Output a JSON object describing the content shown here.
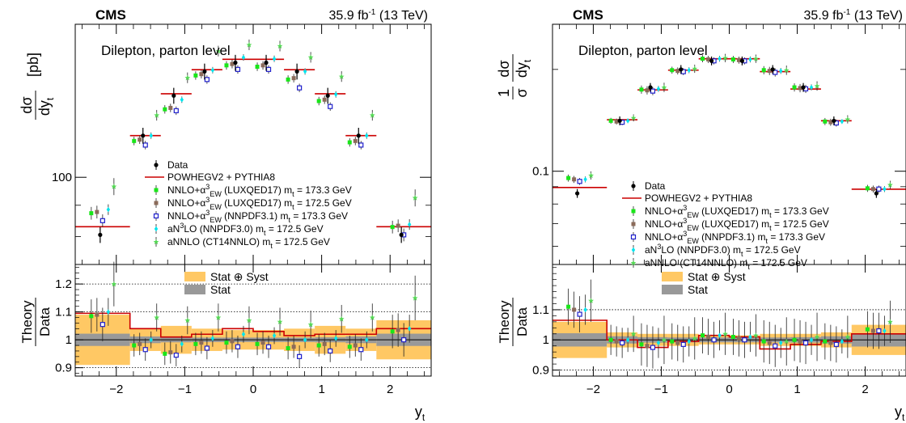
{
  "colors": {
    "data": "#000000",
    "powheg": "#cc0000",
    "luxqed_1733": "#19e619",
    "luxqed_1725": "#8b6b5a",
    "nnpdf31": "#1f1fcc",
    "an3lo": "#00e5ee",
    "annlo": "#55d855",
    "band_total": "#ffc864",
    "band_stat": "#999999"
  },
  "chart_data": [
    {
      "type": "scatter",
      "experiment": "CMS",
      "lumi": "35.9 fb",
      "lumi_sup": "-1",
      "lumi_suffix": " (13 TeV)",
      "region": "Dilepton, parton level",
      "ylabel_top_num": "dσ",
      "ylabel_top_den": "dy",
      "ylabel_top_sub": "t",
      "ylabel_top_unit": "[pb]",
      "ylabel_ratio_num": "Theory",
      "ylabel_ratio_den": "Data",
      "xlabel": "y",
      "xlabel_sub": "t",
      "y_scale": "log",
      "ylim": [
        72,
        178
      ],
      "ylim_ratio": [
        0.87,
        1.27
      ],
      "xlim": [
        -2.6,
        2.6
      ],
      "x_ticks": [
        -2,
        -1,
        0,
        1,
        2
      ],
      "y_ticks": [
        100
      ],
      "y_ticks_ratio": [
        0.9,
        1,
        1.1,
        1.2
      ],
      "bin_edges": [
        -2.6,
        -1.8,
        -1.35,
        -0.9,
        -0.45,
        0,
        0.45,
        0.9,
        1.35,
        1.8,
        2.6
      ],
      "data": [
        80.5,
        117,
        136,
        149,
        154,
        154,
        149,
        136,
        117,
        80.5
      ],
      "powheg": [
        83,
        117,
        137,
        150,
        156,
        156,
        150,
        137,
        117,
        83
      ],
      "ratio_powheg": [
        1.095,
        1.04,
        1.01,
        1.02,
        1.04,
        1.03,
        1.015,
        1.02,
        1.02,
        1.04
      ],
      "ratio_band_total": [
        0.09,
        0.04,
        0.05,
        0.04,
        0.035,
        0.035,
        0.04,
        0.05,
        0.04,
        0.07
      ],
      "ratio_band_stat": [
        0.022,
        0.012,
        0.009,
        0.008,
        0.008,
        0.008,
        0.008,
        0.009,
        0.012,
        0.022
      ],
      "ratio_grid": [
        0.9,
        1.1,
        1.2
      ],
      "series": [
        {
          "legend": "NNLO+α",
          "legend_sup": "3",
          "legend_sub": "EW",
          "legend_rest": " (LUXQED17) m",
          "legend_mass_sub": "t",
          "legend_mass": " = 173.3 GeV",
          "key": "luxqed_1733",
          "marker": "square-filled",
          "ratio": [
            1.085,
            0.98,
            0.95,
            0.985,
            0.99,
            0.985,
            0.97,
            0.98,
            0.975,
            1.03
          ],
          "ratio_err": [
            0.06,
            0.04,
            0.04,
            0.04,
            0.04,
            0.04,
            0.04,
            0.04,
            0.04,
            0.06
          ]
        },
        {
          "legend": "NNLO+α",
          "legend_sup": "3",
          "legend_sub": "EW",
          "legend_rest": " (LUXQED17) m",
          "legend_mass_sub": "t",
          "legend_mass": " = 172.5 GeV",
          "key": "luxqed_1725",
          "marker": "square-filled",
          "ratio": [
            1.09,
            0.985,
            0.955,
            0.99,
            0.995,
            0.99,
            0.975,
            0.985,
            0.98,
            1.035
          ],
          "ratio_err": [
            0.06,
            0.04,
            0.04,
            0.04,
            0.04,
            0.04,
            0.04,
            0.04,
            0.04,
            0.06
          ]
        },
        {
          "legend": "NNLO+α",
          "legend_sup": "3",
          "legend_sub": "EW",
          "legend_rest": " (NNPDF3.1) m",
          "legend_mass_sub": "t",
          "legend_mass": " = 173.3 GeV",
          "key": "nnpdf31",
          "marker": "square-open",
          "ratio": [
            1.055,
            0.965,
            0.945,
            0.97,
            0.975,
            0.975,
            0.94,
            0.96,
            0.965,
            1.0
          ],
          "ratio_err": [
            0.06,
            0.04,
            0.04,
            0.04,
            0.04,
            0.04,
            0.04,
            0.04,
            0.04,
            0.06
          ]
        },
        {
          "legend": "aN",
          "legend_sup": "3",
          "legend_sub": "",
          "legend_rest": "LO (NNPDF3.0) m",
          "legend_mass_sub": "t",
          "legend_mass": " = 172.5 GeV",
          "key": "an3lo",
          "marker": "diamond",
          "ratio": [
            1.1,
            1.0,
            0.985,
            1.005,
            1.02,
            1.015,
            1.0,
            1.005,
            1.0,
            1.04
          ],
          "ratio_err": [
            0.05,
            0.03,
            0.03,
            0.03,
            0.03,
            0.03,
            0.03,
            0.03,
            0.03,
            0.05
          ]
        },
        {
          "legend": "aNNLO (CT14NNLO) m",
          "legend_sup": "",
          "legend_sub": "",
          "legend_rest": "",
          "legend_mass_sub": "t",
          "legend_mass": " = 172.5 GeV",
          "key": "annlo",
          "marker": "star",
          "ratio": [
            1.2,
            1.08,
            1.07,
            1.08,
            1.07,
            1.065,
            1.055,
            1.075,
            1.08,
            1.15
          ],
          "ratio_err": [
            0.08,
            0.05,
            0.05,
            0.05,
            0.05,
            0.05,
            0.05,
            0.05,
            0.05,
            0.08
          ]
        }
      ],
      "legend_data": "Data",
      "legend_powheg": "POWHEGV2 + PYTHIA8",
      "legend_band_total": "Stat ⊕ Syst",
      "legend_band_stat": "Stat"
    },
    {
      "type": "scatter",
      "experiment": "CMS",
      "lumi": "35.9 fb",
      "lumi_sup": "-1",
      "lumi_suffix": " (13 TeV)",
      "region": "Dilepton, parton level",
      "ylabel_top_pre": "1",
      "ylabel_top_pre_den": "σ",
      "ylabel_top_num": "dσ",
      "ylabel_top_den": "dy",
      "ylabel_top_sub": "t",
      "ylabel_ratio_num": "Theory",
      "ylabel_ratio_den": "Data",
      "xlabel": "y",
      "xlabel_sub": "t",
      "y_scale": "log",
      "ylim": [
        0.053,
        0.272
      ],
      "ylim_ratio": [
        0.88,
        1.25
      ],
      "xlim": [
        -2.6,
        2.6
      ],
      "x_ticks": [
        -2,
        -1,
        0,
        1,
        2
      ],
      "y_ticks": [
        0.1
      ],
      "y_ticks_ratio": [
        0.9,
        1,
        1.1
      ],
      "bin_edges": [
        -2.6,
        -1.8,
        -1.35,
        -0.9,
        -0.45,
        0,
        0.45,
        0.9,
        1.35,
        1.8,
        2.6
      ],
      "data": [
        0.086,
        0.141,
        0.177,
        0.2,
        0.212,
        0.212,
        0.2,
        0.177,
        0.141,
        0.086
      ],
      "powheg": [
        0.0895,
        0.142,
        0.174,
        0.199,
        0.215,
        0.215,
        0.197,
        0.175,
        0.141,
        0.0885
      ],
      "ratio_powheg": [
        1.065,
        1.0,
        0.975,
        0.995,
        1.015,
        1.01,
        0.97,
        0.985,
        0.995,
        1.02
      ],
      "ratio_band_total": [
        0.06,
        0.025,
        0.02,
        0.02,
        0.015,
        0.015,
        0.02,
        0.02,
        0.025,
        0.05
      ],
      "ratio_band_stat": [
        0.022,
        0.012,
        0.009,
        0.008,
        0.008,
        0.008,
        0.008,
        0.009,
        0.012,
        0.022
      ],
      "ratio_grid": [
        0.9,
        1.1
      ],
      "series": [
        {
          "legend": "NNLO+α",
          "legend_sup": "3",
          "legend_sub": "EW",
          "legend_rest": " (LUXQED17) m",
          "legend_mass_sub": "t",
          "legend_mass": " = 173.3 GeV",
          "key": "luxqed_1733",
          "marker": "square-filled",
          "ratio": [
            1.11,
            1.0,
            0.985,
            0.995,
            1.015,
            1.01,
            0.995,
            1.0,
            0.995,
            1.035
          ],
          "ratio_err": [
            0.06,
            0.05,
            0.07,
            0.06,
            0.06,
            0.06,
            0.07,
            0.07,
            0.06,
            0.06
          ]
        },
        {
          "legend": "NNLO+α",
          "legend_sup": "3",
          "legend_sub": "EW",
          "legend_rest": " (LUXQED17) m",
          "legend_mass_sub": "t",
          "legend_mass": " = 172.5 GeV",
          "key": "luxqed_1725",
          "marker": "square-filled",
          "ratio": [
            1.1,
            0.995,
            0.98,
            0.99,
            1.01,
            1.005,
            0.99,
            0.995,
            0.99,
            1.03
          ],
          "ratio_err": [
            0.06,
            0.05,
            0.07,
            0.06,
            0.06,
            0.06,
            0.07,
            0.07,
            0.06,
            0.06
          ]
        },
        {
          "legend": "NNLO+α",
          "legend_sup": "3",
          "legend_sub": "EW",
          "legend_rest": " (NNPDF3.1) m",
          "legend_mass_sub": "t",
          "legend_mass": " = 173.3 GeV",
          "key": "nnpdf31",
          "marker": "square-open",
          "ratio": [
            1.085,
            0.99,
            0.975,
            0.985,
            1.0,
            1.0,
            0.98,
            0.99,
            0.985,
            1.03
          ],
          "ratio_err": [
            0.06,
            0.05,
            0.07,
            0.06,
            0.06,
            0.06,
            0.07,
            0.07,
            0.06,
            0.06
          ]
        },
        {
          "legend": "aN",
          "legend_sup": "3",
          "legend_sub": "",
          "legend_rest": "LO (NNPDF3.0) m",
          "legend_mass_sub": "t",
          "legend_mass": " = 172.5 GeV",
          "key": "an3lo",
          "marker": "diamond",
          "ratio": [
            1.1,
            1.0,
            0.99,
            0.995,
            1.015,
            1.01,
            0.99,
            1.0,
            0.995,
            1.03
          ],
          "ratio_err": [
            0.05,
            0.04,
            0.05,
            0.05,
            0.05,
            0.05,
            0.05,
            0.05,
            0.04,
            0.05
          ]
        },
        {
          "legend": "aNNLO (CT14NNLO) m",
          "legend_sup": "",
          "legend_sub": "",
          "legend_rest": "",
          "legend_mass_sub": "t",
          "legend_mass": " = 172.5 GeV",
          "key": "annlo",
          "marker": "star",
          "ratio": [
            1.13,
            1.02,
            1.0,
            1.005,
            1.02,
            1.015,
            0.995,
            1.01,
            1.01,
            1.06
          ],
          "ratio_err": [
            0.07,
            0.06,
            0.08,
            0.07,
            0.07,
            0.07,
            0.08,
            0.08,
            0.07,
            0.07
          ]
        }
      ],
      "legend_data": "Data",
      "legend_powheg": "POWHEGV2 + PYTHIA8",
      "legend_band_total": "Stat ⊕ Syst",
      "legend_band_stat": "Stat"
    }
  ]
}
